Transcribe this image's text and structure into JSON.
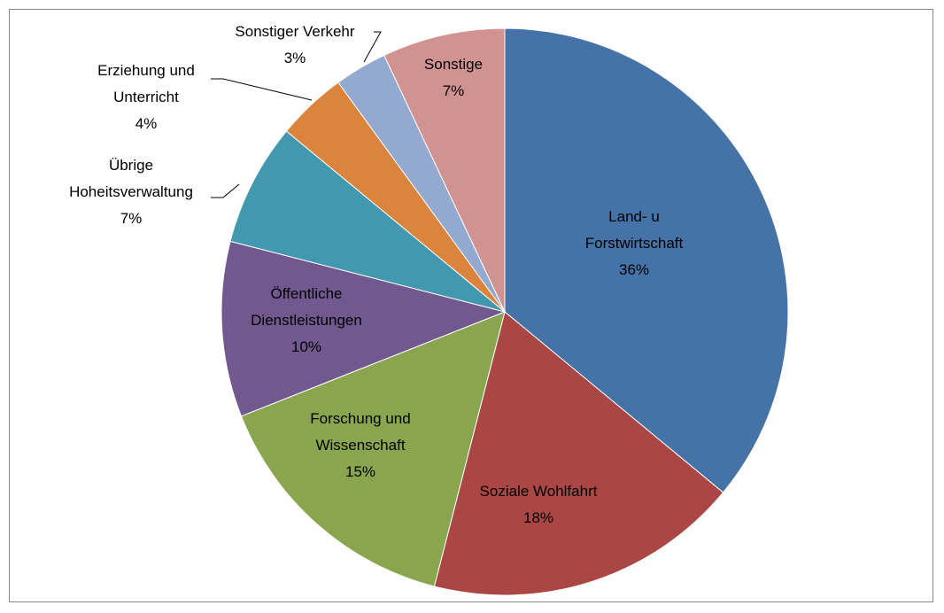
{
  "chart_data": {
    "type": "pie",
    "categories": [
      "Land- u Forstwirtschaft",
      "Soziale Wohlfahrt",
      "Forschung und Wissenschaft",
      "Öffentliche Dienstleistungen",
      "Übrige Hoheitsverwaltung",
      "Erziehung und Unterricht",
      "Sonstiger Verkehr",
      "Sonstige"
    ],
    "values": [
      36,
      18,
      15,
      10,
      7,
      4,
      3,
      7
    ],
    "value_labels": [
      "36%",
      "18%",
      "15%",
      "10%",
      "7%",
      "4%",
      "3%",
      "7%"
    ],
    "colors": [
      "#4572a7",
      "#aa4643",
      "#89a54e",
      "#71588f",
      "#4198af",
      "#db843d",
      "#93a9cf",
      "#d19392"
    ]
  }
}
